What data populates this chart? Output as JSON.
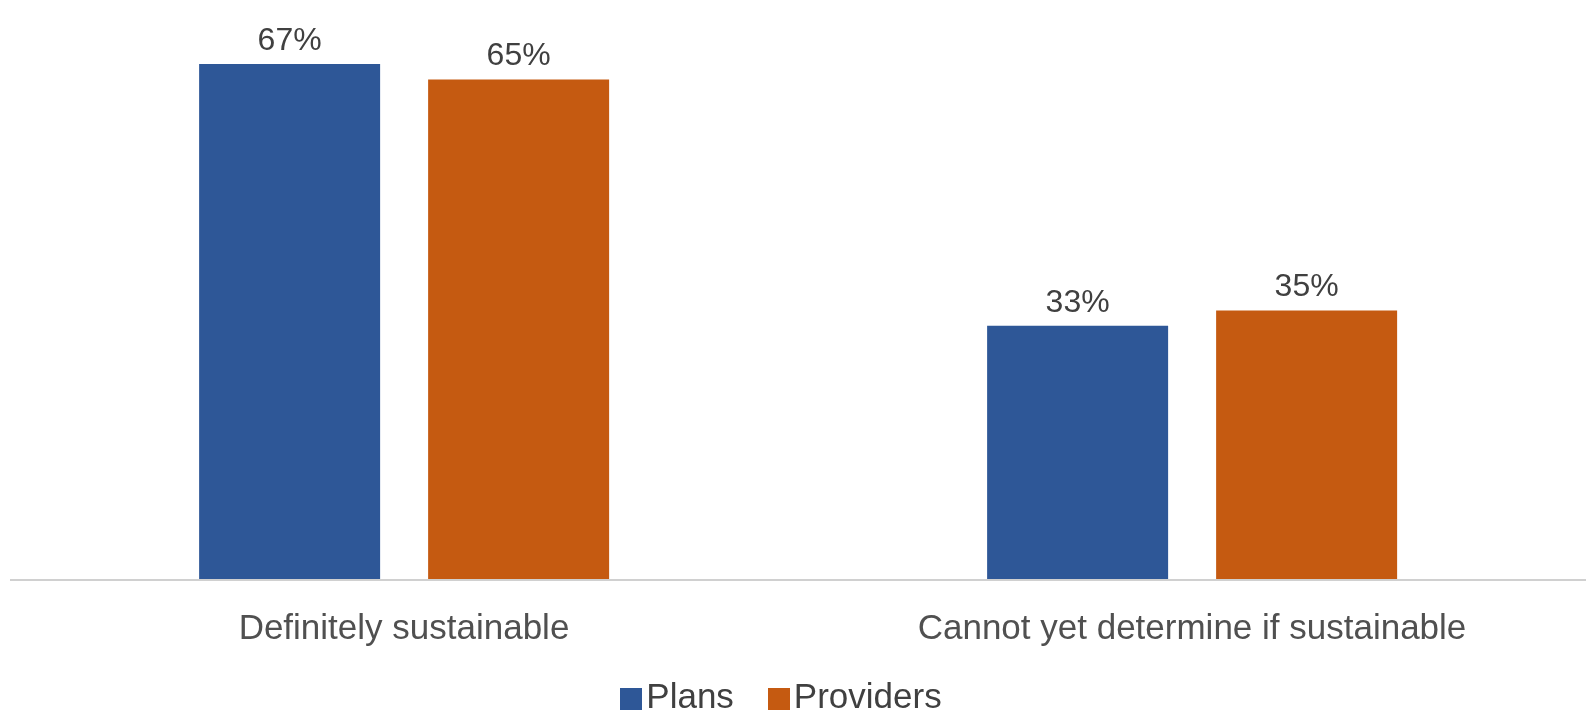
{
  "chart_data": {
    "type": "bar",
    "categories": [
      "Definitely sustainable",
      "Cannot yet determine if sustainable"
    ],
    "series": [
      {
        "name": "Plans",
        "color": "#2e5797",
        "values": [
          67,
          33
        ],
        "value_labels": [
          "67%",
          "33%"
        ]
      },
      {
        "name": "Providers",
        "color": "#c55a11",
        "values": [
          65,
          35
        ],
        "value_labels": [
          "65%",
          "35%"
        ]
      }
    ],
    "legend": "bottom",
    "grid": false
  }
}
